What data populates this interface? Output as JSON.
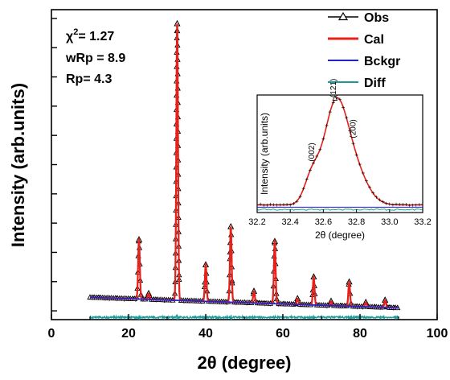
{
  "chart_data": [
    {
      "type": "line",
      "xlabel": "2θ (degree)",
      "ylabel": "Intensity (arb.units)",
      "xlim": [
        0,
        100
      ],
      "xticks": [
        0,
        20,
        40,
        60,
        80,
        100
      ],
      "x_tick_labels": [
        "0",
        "20",
        "40",
        "60",
        "80",
        "100"
      ],
      "ylim": [
        -0.03,
        1.03
      ],
      "y_tick_labels_shown": false,
      "legend_placement": "top-right",
      "annotations": [
        {
          "label": "χ",
          "superscript": "2",
          "value_text": "= 1.27"
        },
        {
          "text": "wRp = 8.9"
        },
        {
          "text": "Rp= 4.3"
        }
      ],
      "series": [
        {
          "name": "Obs",
          "color": "#000000",
          "marker": "open-triangle"
        },
        {
          "name": "Cal",
          "color": "#e8201a"
        },
        {
          "name": "Bckgr",
          "color": "#2222cc"
        },
        {
          "name": "Diff",
          "color": "#1a9a9a"
        }
      ],
      "peaks": [
        {
          "x": 22.7,
          "height": 0.203
        },
        {
          "x": 25.2,
          "height": 0.02
        },
        {
          "x": 32.6,
          "height": 0.946
        },
        {
          "x": 40.0,
          "height": 0.125
        },
        {
          "x": 46.5,
          "height": 0.258
        },
        {
          "x": 52.5,
          "height": 0.04
        },
        {
          "x": 57.9,
          "height": 0.213
        },
        {
          "x": 63.8,
          "height": 0.02
        },
        {
          "x": 68.0,
          "height": 0.096
        },
        {
          "x": 72.5,
          "height": 0.015
        },
        {
          "x": 77.2,
          "height": 0.083
        },
        {
          "x": 81.5,
          "height": 0.015
        },
        {
          "x": 86.5,
          "height": 0.025
        }
      ],
      "background_start": 0.046,
      "background_end": 0.01,
      "x_range": [
        10,
        90
      ],
      "diff_level": -0.022
    },
    {
      "type": "line",
      "xlabel": "2θ (degree)",
      "ylabel": "Intensity (arb.units)",
      "xlim": [
        32.2,
        33.2
      ],
      "xticks": [
        32.2,
        32.4,
        32.6,
        32.8,
        33.0,
        33.2
      ],
      "x_tick_labels": [
        "32.2",
        "32.4",
        "32.6",
        "32.8",
        "33.0",
        "33.2"
      ],
      "y_tick_labels_shown": false,
      "annotations": [
        {
          "text": "(002)",
          "x": 32.53
        },
        {
          "text": "(121)",
          "x": 32.66
        },
        {
          "text": "(200)",
          "x": 32.78
        }
      ]
    }
  ]
}
